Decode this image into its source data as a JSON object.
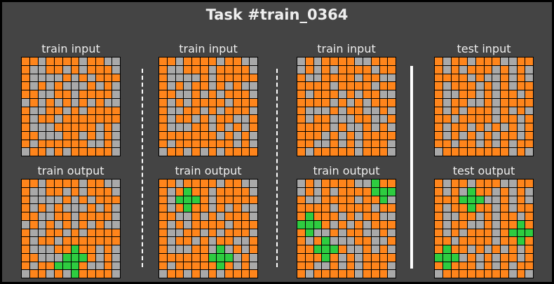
{
  "title": "Task #train_0364",
  "colors": {
    "0": "#a9a9a9",
    "7": "#ff851b",
    "3": "#2ecc40"
  },
  "pairs": [
    {
      "input_label": "train input",
      "output_label": "train output",
      "input": [
        "770777707700",
        "700770707770",
        "700007070777",
        "707070007070",
        "770077077770",
        "070707070700",
        "700770707777",
        "707707777777",
        "700077777070",
        "770007707070",
        "707777770070",
        "077070777770"
      ],
      "output": [
        "770777707700",
        "700770707770",
        "700007070777",
        "707070007070",
        "770077077770",
        "070707070700",
        "700770707777",
        "707707777777",
        "700077377070",
        "770003337070",
        "707733370070",
        "077070377770"
      ]
    },
    {
      "input_label": "train input",
      "output_label": "train output",
      "input": [
        "770777707700",
        "700777077770",
        "700007077777",
        "707077070700",
        "770070707770",
        "707077770777",
        "700770707770",
        "707707077007",
        "700077070707",
        "777777707070",
        "707777777070",
        "077070707777"
      ],
      "output": [
        "770777707700",
        "707377077770",
        "703337077777",
        "707377070700",
        "770070707770",
        "707077770777",
        "700770707770",
        "707707077007",
        "700077030707",
        "777777333070",
        "707777737070",
        "077070707777"
      ]
    },
    {
      "input_label": "train input",
      "output_label": "train output",
      "input": [
        "070777700777",
        "070707777077",
        "700777707700",
        "777707777077",
        "707770707700",
        "777707070777",
        "700070770070",
        "707700077007",
        "777707007070",
        "777070707777",
        "770070707770",
        "707777707770"
      ],
      "output": [
        "070777700377",
        "070707777333",
        "700777707730",
        "777707777077",
        "737770707700",
        "333707070777",
        "730070770070",
        "707300077007",
        "773337007070",
        "777370707777",
        "770070707770",
        "707777707770"
      ]
    },
    {
      "input_label": "test input",
      "output_label": "test output",
      "input": [
        "707707770077",
        "707077707070",
        "777707007070",
        "707770707077",
        "700770707707",
        "707700707777",
        "707077707070",
        "770777707707",
        "707707070707",
        "707070707707",
        "770770707077",
        "077777777070"
      ],
      "output": [
        "707707770077",
        "707037707070",
        "777333007070",
        "707737707077",
        "700770707707",
        "707700707737",
        "707077707333",
        "770777707737",
        "737707070707",
        "333070707707",
        "737770707077",
        "077777777070"
      ]
    }
  ]
}
